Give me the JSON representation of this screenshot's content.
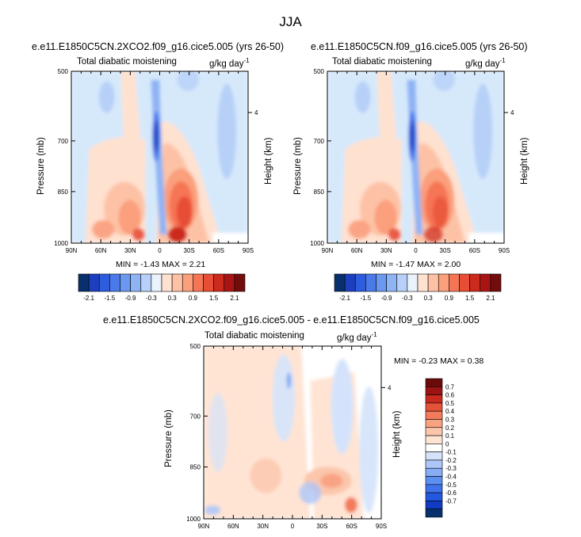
{
  "page": {
    "title": "JJA"
  },
  "colors": {
    "axis": "#000000",
    "bg_pale_blue": "#d6e9fb",
    "palette_top": [
      "#08306b",
      "#1c3fbf",
      "#2d5cdc",
      "#4a7aea",
      "#6b98f0",
      "#8fb4f4",
      "#b7d0f7",
      "#e9f2fd",
      "#ffe1d0",
      "#fdc2a6",
      "#fb9f7c",
      "#f57555",
      "#e84e35",
      "#cc2a1d",
      "#a81514",
      "#730c0c"
    ],
    "palette_bottom": [
      "#08306b",
      "#0f3cc2",
      "#2558e0",
      "#3f73eb",
      "#5d8ff1",
      "#86acf4",
      "#adc6f7",
      "#d4e3fb",
      "#ffffff",
      "#ffe4d4",
      "#fcc6ac",
      "#f9a383",
      "#f27b5b",
      "#e5523a",
      "#c92a1f",
      "#9c1313",
      "#6b0a0a"
    ]
  },
  "chart_data": [
    {
      "type": "heatmap",
      "title": "e.e11.E1850C5CN.2XCO2.f09_g16.cice5.005 (yrs 26-50)",
      "left_string": "Total diabatic moistening",
      "units": "g/kg day",
      "units_sup": "-1",
      "ylabel": "Pressure (mb)",
      "ylabel_right": "Height (km)",
      "x_ticks": [
        "90N",
        "60N",
        "30N",
        "0",
        "30S",
        "60S",
        "90S"
      ],
      "y_ticks": [
        "500",
        "700",
        "850",
        "1000"
      ],
      "right_ticks": [
        "4"
      ],
      "min_label": "MIN =  -1.43   MAX =   2.21",
      "colorbar": {
        "orientation": "horizontal",
        "labels": [
          "-2.1",
          "-1.5",
          "-0.9",
          "-0.3",
          "0.3",
          "0.9",
          "1.5",
          "2.1"
        ]
      }
    },
    {
      "type": "heatmap",
      "title": "e.e11.E1850C5CN.f09_g16.cice5.005 (yrs 26-50)",
      "left_string": "Total diabatic moistening",
      "units": "g/kg day",
      "units_sup": "-1",
      "ylabel": "Pressure (mb)",
      "ylabel_right": "Height (km)",
      "x_ticks": [
        "90N",
        "60N",
        "30N",
        "0",
        "30S",
        "60S",
        "90S"
      ],
      "y_ticks": [
        "500",
        "700",
        "850",
        "1000"
      ],
      "right_ticks": [
        "4"
      ],
      "min_label": "MIN =  -1.47   MAX =   2.00",
      "colorbar": {
        "orientation": "horizontal",
        "labels": [
          "-2.1",
          "-1.5",
          "-0.9",
          "-0.3",
          "0.3",
          "0.9",
          "1.5",
          "2.1"
        ]
      }
    },
    {
      "type": "heatmap",
      "title": "e.e11.E1850C5CN.2XCO2.f09_g16.cice5.005 - e.e11.E1850C5CN.f09_g16.cice5.005",
      "left_string": "Total diabatic moistening",
      "units": "g/kg day",
      "units_sup": "-1",
      "ylabel": "Pressure (mb)",
      "ylabel_right": "Height (km)",
      "x_ticks": [
        "90N",
        "60N",
        "30N",
        "0",
        "30S",
        "60S",
        "90S"
      ],
      "y_ticks": [
        "500",
        "700",
        "850",
        "1000"
      ],
      "right_ticks": [
        "4"
      ],
      "min_label": "MIN =  -0.23   MAX =   0.38",
      "colorbar": {
        "orientation": "vertical",
        "labels": [
          "0.7",
          "0.6",
          "0.5",
          "0.4",
          "0.3",
          "0.2",
          "0.1",
          "0",
          "-0.1",
          "-0.2",
          "-0.3",
          "-0.4",
          "-0.5",
          "-0.6",
          "-0.7"
        ]
      }
    }
  ]
}
